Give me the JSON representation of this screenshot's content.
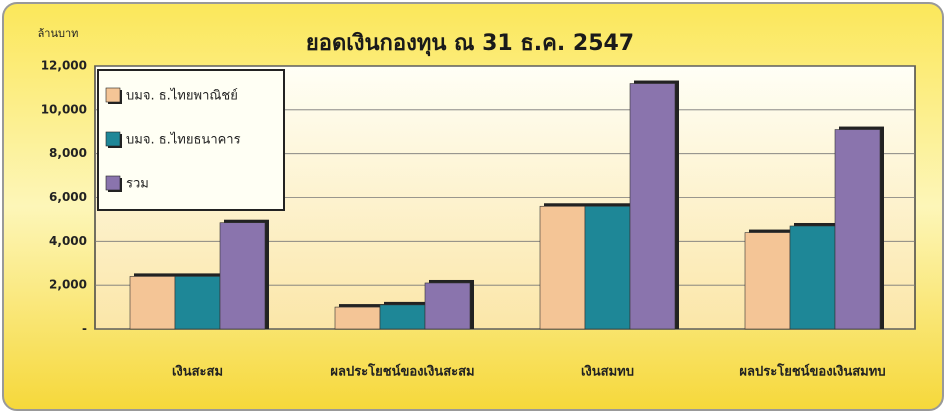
{
  "chart_data": {
    "type": "bar",
    "title": "ยอดเงินกองทุน ณ 31 ธ.ค. 2547",
    "y_label": "ล้านบาท",
    "categories": [
      "เงินสะสม",
      "ผลประโยชน์ของเงินสะสม",
      "เงินสมทบ",
      "ผลประโยชน์ของเงินสมทบ"
    ],
    "series": [
      {
        "name": "บมจ. ธ.ไทยพาณิชย์",
        "color": "#f4c596",
        "values": [
          2400,
          1000,
          5600,
          4400
        ]
      },
      {
        "name": "บมจ. ธ.ไทยธนาคาร",
        "color": "#1e8797",
        "values": [
          2400,
          1100,
          5600,
          4700
        ]
      },
      {
        "name": "รวม",
        "color": "#8a74ad",
        "values": [
          4850,
          2100,
          11200,
          9100
        ]
      }
    ],
    "ylim": [
      0,
      12000
    ],
    "yticks": [
      {
        "value": 0,
        "label": "-"
      },
      {
        "value": 2000,
        "label": "2,000"
      },
      {
        "value": 4000,
        "label": "4,000"
      },
      {
        "value": 6000,
        "label": "6,000"
      },
      {
        "value": 8000,
        "label": "8,000"
      },
      {
        "value": 10000,
        "label": "10,000"
      },
      {
        "value": 12000,
        "label": "12,000"
      }
    ],
    "grid": true,
    "legend": "top-left"
  }
}
